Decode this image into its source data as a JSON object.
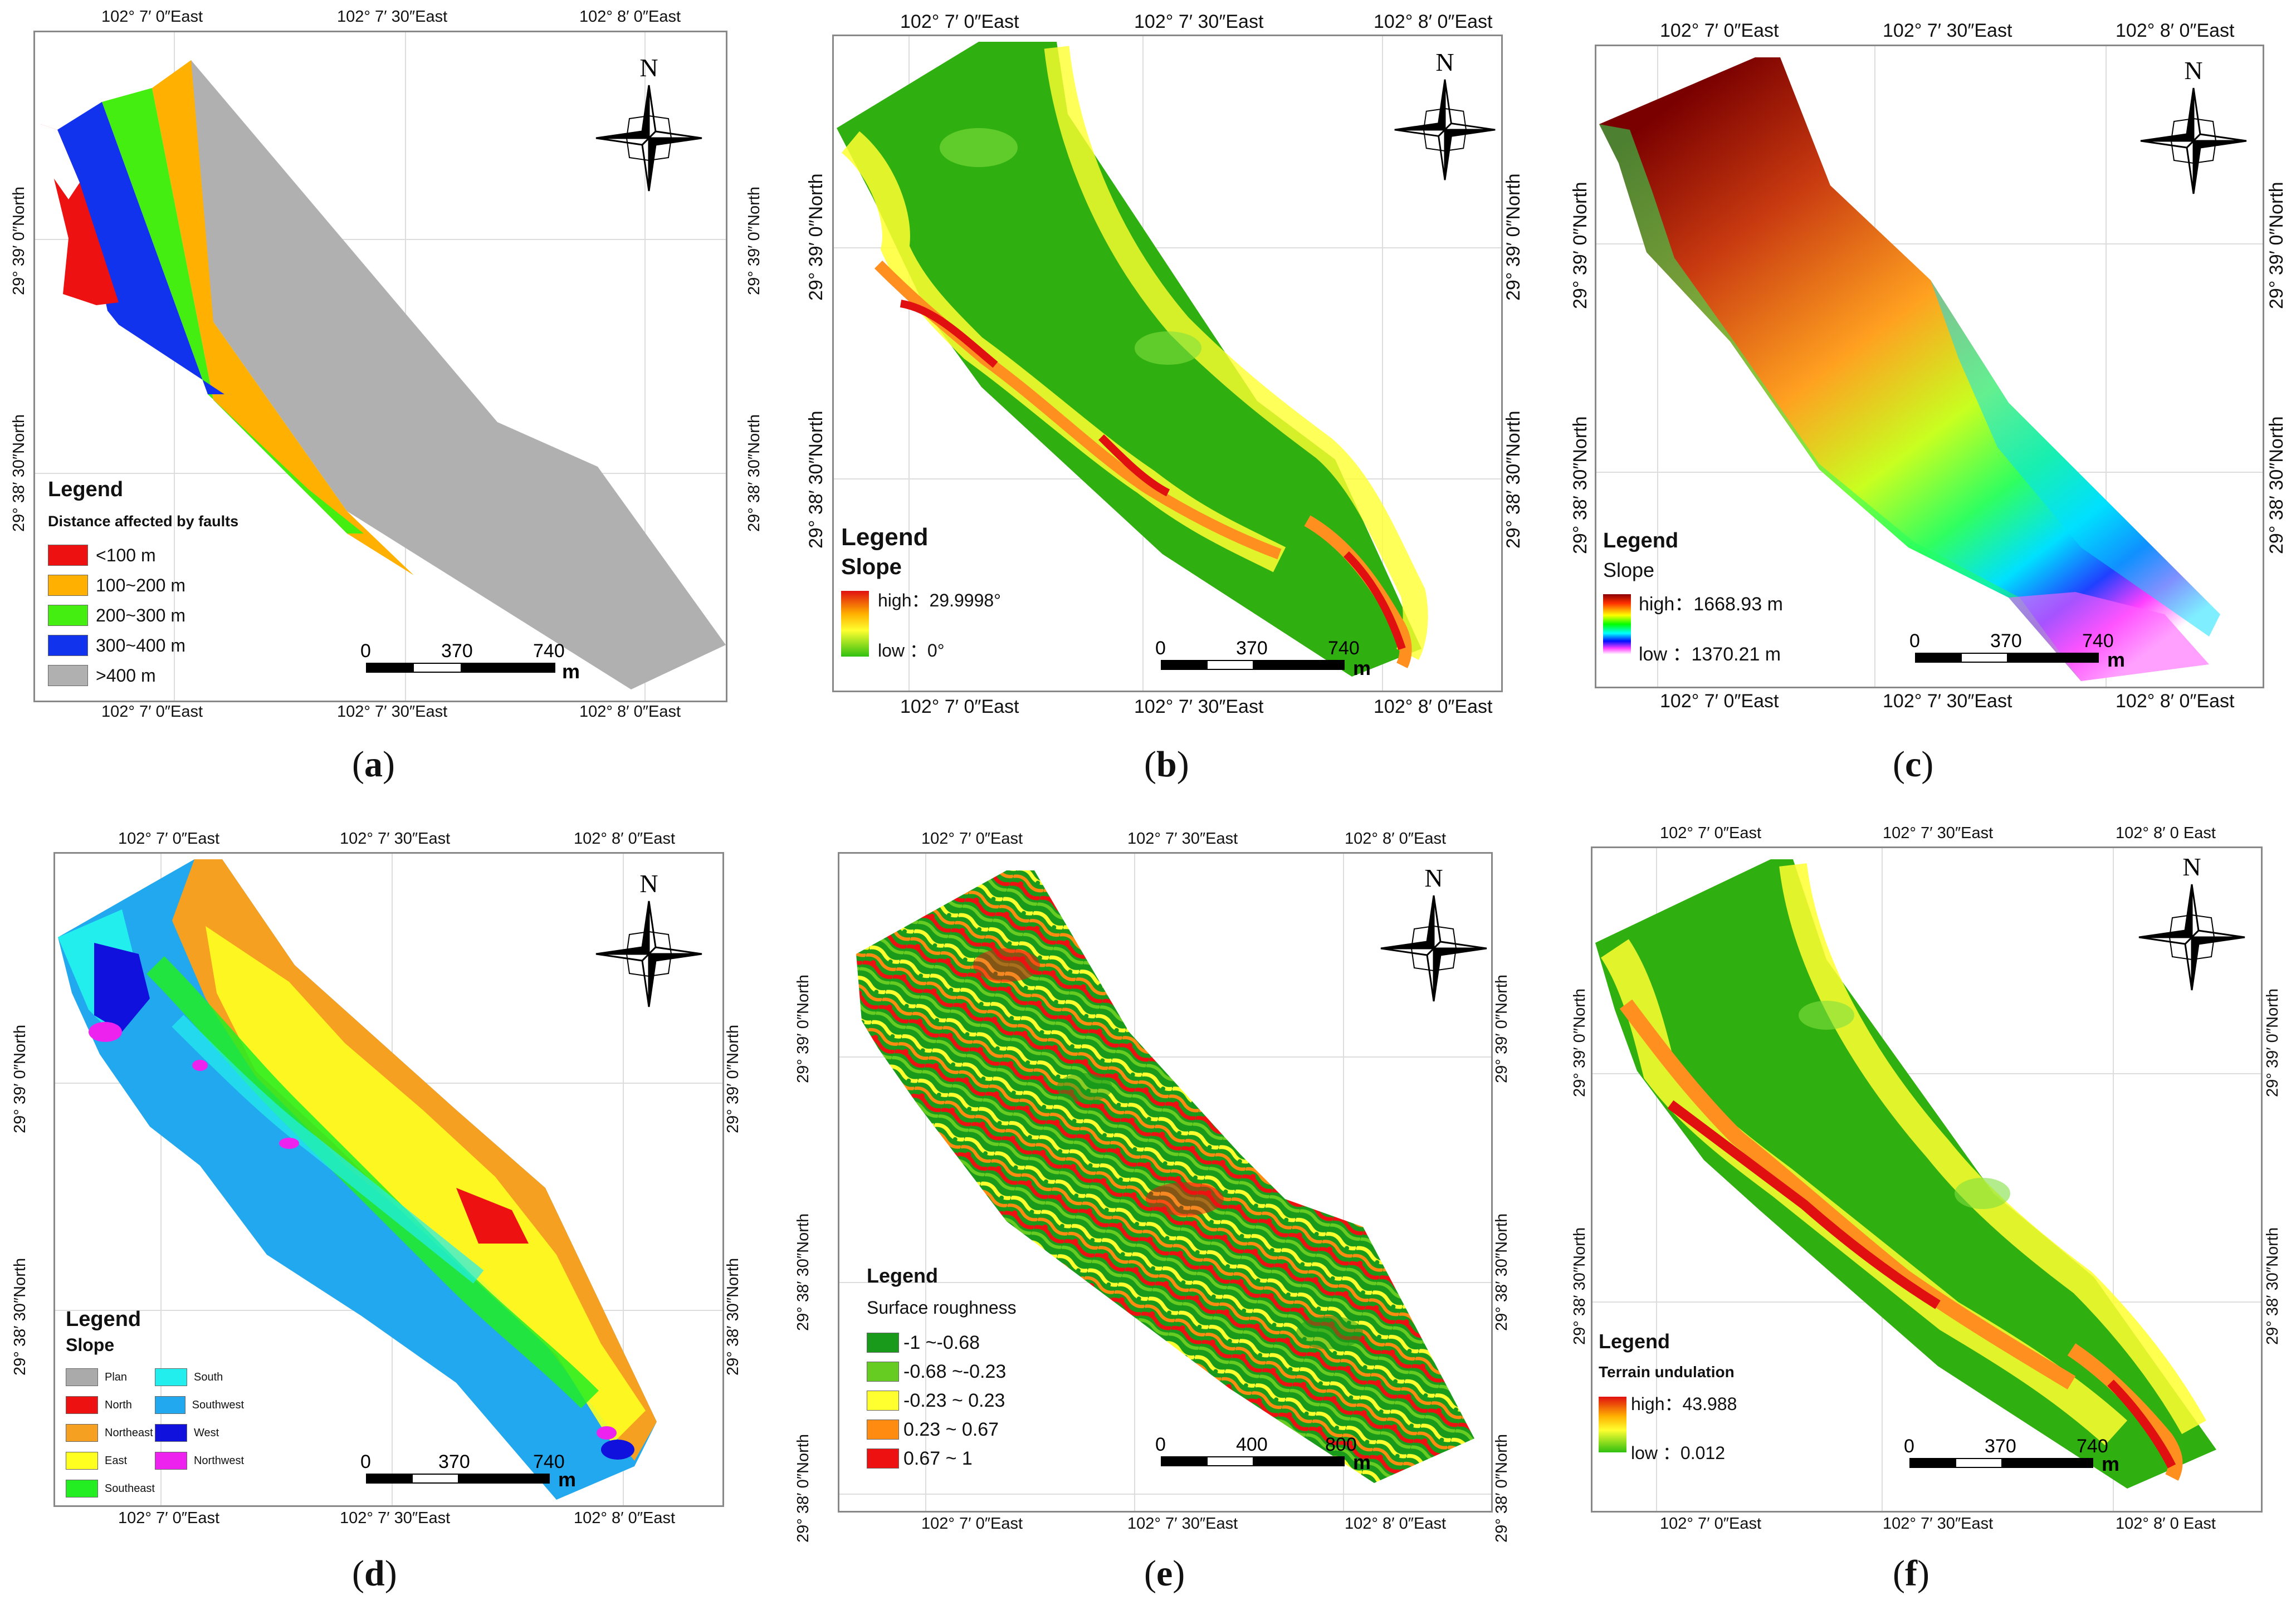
{
  "common": {
    "north_label": "N",
    "unit": "m"
  },
  "panels": [
    {
      "id": "a",
      "caption": "a",
      "top_coords": [
        "102° 7′ 0″East",
        "102° 7′ 30″East",
        "102° 8′ 0″East"
      ],
      "bottom_coords": [
        "102° 7′ 0″East",
        "102° 7′ 30″East",
        "102° 8′ 0″East"
      ],
      "side_coords": [
        "29° 39′ 0″North",
        "29° 38′ 30″North"
      ],
      "legend": {
        "title": "Legend",
        "subtitle": "Distance affected by faults",
        "items": [
          {
            "label": "<100 m",
            "color": "#ee1111"
          },
          {
            "label": "100~200 m",
            "color": "#ffb000"
          },
          {
            "label": "200~300 m",
            "color": "#44ee11"
          },
          {
            "label": "300~400 m",
            "color": "#1133ee"
          },
          {
            "label": ">400 m",
            "color": "#b0b0b0"
          }
        ]
      },
      "scale": [
        "0",
        "370",
        "740"
      ]
    },
    {
      "id": "b",
      "caption": "b",
      "top_coords": [
        "102° 7′ 0″East",
        "102° 7′ 30″East",
        "102° 8′ 0″East"
      ],
      "bottom_coords": [
        "102° 7′ 0″East",
        "102° 7′ 30″East",
        "102° 8′ 0″East"
      ],
      "side_coords": [
        "29° 39′ 0″North",
        "29° 38′ 30″North"
      ],
      "legend": {
        "title": "Legend",
        "subtitle": "Slope",
        "high": "high：29.9998°",
        "low": "low ：0°",
        "colors": [
          "#e01010",
          "#ffb000",
          "#ffff30",
          "#30c010"
        ]
      },
      "scale": [
        "0",
        "370",
        "740"
      ]
    },
    {
      "id": "c",
      "caption": "c",
      "top_coords": [
        "102° 7′ 0″East",
        "102° 7′ 30″East",
        "102° 8′ 0″East"
      ],
      "bottom_coords": [
        "102° 7′ 0″East",
        "102° 7′ 30″East",
        "102° 8′ 0″East"
      ],
      "side_coords": [
        "29° 39′ 0″North",
        "29° 38′ 30″North"
      ],
      "legend": {
        "title": "Legend",
        "subtitle": "Slope",
        "high": "high：1668.93 m",
        "low": "low ：1370.21 m",
        "colors": [
          "#8b0000",
          "#ff3000",
          "#ffff00",
          "#00ff00",
          "#00ffff",
          "#0010ff",
          "#ff40ff",
          "#ffffff"
        ]
      },
      "scale": [
        "0",
        "370",
        "740"
      ]
    },
    {
      "id": "d",
      "caption": "d",
      "top_coords": [
        "102° 7′ 0″East",
        "102° 7′ 30″East",
        "102° 8′ 0″East"
      ],
      "bottom_coords": [
        "102° 7′ 0″East",
        "102° 7′ 30″East",
        "102° 8′ 0″East"
      ],
      "side_coords": [
        "29° 39′ 0″North",
        "29° 38′ 30″North"
      ],
      "legend": {
        "title": "Legend",
        "subtitle": "Slope",
        "items": [
          {
            "label": "Plan",
            "color": "#aaaaaa"
          },
          {
            "label": "North",
            "color": "#ee1111"
          },
          {
            "label": "Northeast",
            "color": "#f5a020"
          },
          {
            "label": "East",
            "color": "#ffff20"
          },
          {
            "label": "Southeast",
            "color": "#22ee22"
          },
          {
            "label": "South",
            "color": "#22eeee"
          },
          {
            "label": "Southwest",
            "color": "#22a8ee"
          },
          {
            "label": "West",
            "color": "#1111dd"
          },
          {
            "label": "Northwest",
            "color": "#ee22ee"
          }
        ]
      },
      "scale": [
        "0",
        "370",
        "740"
      ]
    },
    {
      "id": "e",
      "caption": "e",
      "top_coords": [
        "102° 7′ 0″East",
        "102° 7′ 30″East",
        "102° 8′ 0″East"
      ],
      "bottom_coords": [
        "102° 7′ 0″East",
        "102° 7′ 30″East",
        "102° 8′ 0″East"
      ],
      "side_coords": [
        "29° 39′ 0″North",
        "29° 38′ 30″North",
        "29° 38′ 0″North"
      ],
      "legend": {
        "title": "Legend",
        "subtitle": "Surface roughness",
        "items": [
          {
            "label": "-1 ~-0.68",
            "color": "#1a9a1a"
          },
          {
            "label": "-0.68 ~-0.23",
            "color": "#66cc22"
          },
          {
            "label": "-0.23 ~ 0.23",
            "color": "#ffff30"
          },
          {
            "label": "0.23 ~ 0.67",
            "color": "#ff8c10"
          },
          {
            "label": "0.67 ~ 1",
            "color": "#ee1111"
          }
        ]
      },
      "scale": [
        "0",
        "400",
        "800"
      ]
    },
    {
      "id": "f",
      "caption": "f",
      "top_coords": [
        "102° 7′ 0″East",
        "102° 7′ 30″East",
        "102° 8′ 0 East"
      ],
      "bottom_coords": [
        "102° 7′ 0″East",
        "102° 7′ 30″East",
        "102° 8′ 0 East"
      ],
      "side_coords": [
        "29° 39′ 0″North",
        "29° 38′ 30″North"
      ],
      "legend": {
        "title": "Legend",
        "subtitle": "Terrain undulation",
        "high": "high：43.988",
        "low": "low ：0.012",
        "colors": [
          "#e01010",
          "#ffb000",
          "#ffff30",
          "#30c010"
        ]
      },
      "scale": [
        "0",
        "370",
        "740"
      ]
    }
  ]
}
